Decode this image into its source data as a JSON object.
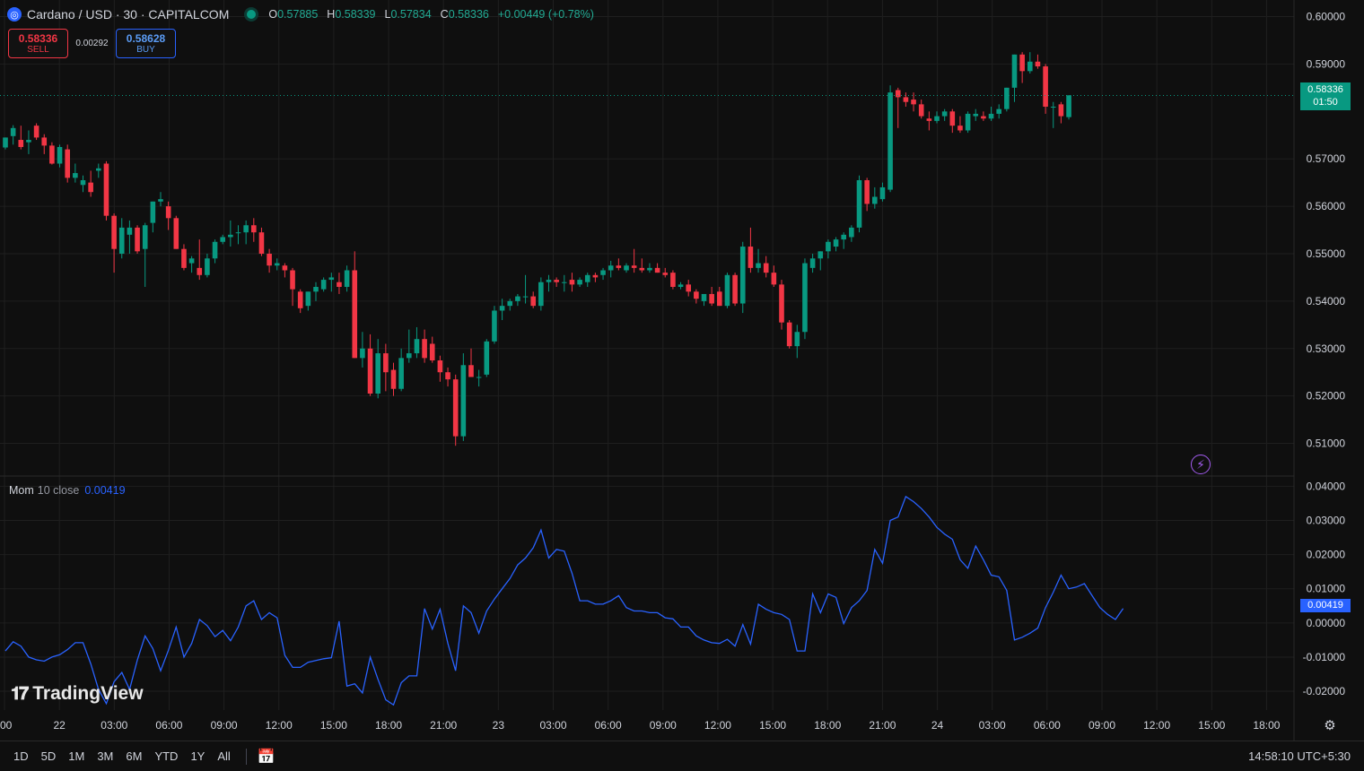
{
  "header": {
    "symbol_icon": "cardano-logo-icon",
    "title": "Cardano / USD · 30 · CAPITALCOM",
    "ohlc": {
      "o_label": "O",
      "o": "0.57885",
      "h_label": "H",
      "h": "0.58339",
      "l_label": "L",
      "l": "0.57834",
      "c_label": "C",
      "c": "0.58336",
      "change": "+0.00449 (+0.78%)"
    }
  },
  "trade": {
    "sell_price": "0.58336",
    "sell_label": "SELL",
    "spread": "0.00292",
    "buy_price": "0.58628",
    "buy_label": "BUY"
  },
  "price_tag": {
    "price": "0.58336",
    "countdown": "01:50"
  },
  "indicator": {
    "name": "Mom",
    "params": "10 close",
    "value": "0.00419"
  },
  "logo": {
    "text": "TradingView"
  },
  "bottom_bar": {
    "ranges": [
      "1D",
      "5D",
      "1M",
      "3M",
      "6M",
      "YTD",
      "1Y",
      "All"
    ],
    "clock": "14:58:10 UTC+5:30"
  },
  "colors": {
    "up": "#089981",
    "down": "#f23645",
    "mom_line": "#2962ff",
    "background": "#0f0f0f",
    "grid": "#1f1f1f"
  },
  "chart_data": [
    {
      "type": "candlestick",
      "title": "Cardano / USD · 30 · CAPITALCOM",
      "y_ticks": [
        "0.60000",
        "0.59000",
        "0.57000",
        "0.56000",
        "0.55000",
        "0.54000",
        "0.53000",
        "0.52000",
        "0.51000"
      ],
      "ylim": [
        0.5033,
        0.6035
      ],
      "x_ticks": [
        ":00",
        "22",
        "03:00",
        "06:00",
        "09:00",
        "12:00",
        "15:00",
        "18:00",
        "21:00",
        "23",
        "03:00",
        "06:00",
        "09:00",
        "12:00",
        "15:00",
        "18:00",
        "21:00",
        "24",
        "03:00",
        "06:00",
        "09:00",
        "12:00",
        "15:00",
        "18:00"
      ],
      "grid": true,
      "last_price_line": 0.58336,
      "candles": [
        [
          0.5724,
          0.5745,
          0.572,
          0.5745
        ],
        [
          0.5748,
          0.5771,
          0.573,
          0.5765
        ],
        [
          0.574,
          0.577,
          0.572,
          0.5725
        ],
        [
          0.5735,
          0.576,
          0.571,
          0.574
        ],
        [
          0.577,
          0.5775,
          0.574,
          0.5745
        ],
        [
          0.5745,
          0.5752,
          0.571,
          0.5728
        ],
        [
          0.5728,
          0.5735,
          0.5688,
          0.569
        ],
        [
          0.569,
          0.573,
          0.5682,
          0.5725
        ],
        [
          0.572,
          0.573,
          0.565,
          0.566
        ],
        [
          0.566,
          0.569,
          0.565,
          0.567
        ],
        [
          0.5645,
          0.5665,
          0.563,
          0.5655
        ],
        [
          0.565,
          0.5675,
          0.562,
          0.563
        ],
        [
          0.5675,
          0.569,
          0.566,
          0.568
        ],
        [
          0.569,
          0.5695,
          0.557,
          0.558
        ],
        [
          0.558,
          0.5585,
          0.546,
          0.551
        ],
        [
          0.55,
          0.5575,
          0.549,
          0.5555
        ],
        [
          0.554,
          0.557,
          0.55,
          0.5555
        ],
        [
          0.5555,
          0.556,
          0.55,
          0.5505
        ],
        [
          0.551,
          0.5565,
          0.543,
          0.556
        ],
        [
          0.5565,
          0.561,
          0.5545,
          0.561
        ],
        [
          0.561,
          0.563,
          0.56,
          0.5615
        ],
        [
          0.56,
          0.561,
          0.555,
          0.5575
        ],
        [
          0.5575,
          0.558,
          0.551,
          0.551
        ],
        [
          0.551,
          0.552,
          0.5465,
          0.547
        ],
        [
          0.548,
          0.5495,
          0.546,
          0.549
        ],
        [
          0.547,
          0.553,
          0.5445,
          0.5455
        ],
        [
          0.5455,
          0.55,
          0.545,
          0.549
        ],
        [
          0.549,
          0.553,
          0.548,
          0.5525
        ],
        [
          0.5525,
          0.554,
          0.552,
          0.5535
        ],
        [
          0.5535,
          0.557,
          0.5515,
          0.554
        ],
        [
          0.5545,
          0.556,
          0.552,
          0.5545
        ],
        [
          0.5545,
          0.557,
          0.552,
          0.556
        ],
        [
          0.556,
          0.5575,
          0.5525,
          0.5545
        ],
        [
          0.5545,
          0.5555,
          0.5495,
          0.55
        ],
        [
          0.55,
          0.551,
          0.546,
          0.5475
        ],
        [
          0.5475,
          0.549,
          0.5465,
          0.548
        ],
        [
          0.5475,
          0.548,
          0.545,
          0.5465
        ],
        [
          0.5465,
          0.547,
          0.539,
          0.5425
        ],
        [
          0.542,
          0.5425,
          0.5375,
          0.5385
        ],
        [
          0.539,
          0.542,
          0.538,
          0.542
        ],
        [
          0.542,
          0.544,
          0.54,
          0.543
        ],
        [
          0.5425,
          0.545,
          0.542,
          0.5445
        ],
        [
          0.5445,
          0.546,
          0.542,
          0.545
        ],
        [
          0.544,
          0.546,
          0.5415,
          0.543
        ],
        [
          0.543,
          0.5475,
          0.542,
          0.5465
        ],
        [
          0.5465,
          0.5505,
          0.528,
          0.528
        ],
        [
          0.528,
          0.5335,
          0.526,
          0.53
        ],
        [
          0.53,
          0.533,
          0.52,
          0.5205
        ],
        [
          0.5205,
          0.532,
          0.5195,
          0.529
        ],
        [
          0.529,
          0.531,
          0.521,
          0.525
        ],
        [
          0.5255,
          0.527,
          0.52,
          0.5215
        ],
        [
          0.5215,
          0.53,
          0.521,
          0.528
        ],
        [
          0.528,
          0.534,
          0.527,
          0.529
        ],
        [
          0.529,
          0.5345,
          0.528,
          0.532
        ],
        [
          0.532,
          0.534,
          0.527,
          0.528
        ],
        [
          0.531,
          0.5325,
          0.527,
          0.5275
        ],
        [
          0.5275,
          0.5285,
          0.523,
          0.525
        ],
        [
          0.525,
          0.526,
          0.522,
          0.5235
        ],
        [
          0.5235,
          0.5245,
          0.5095,
          0.5115
        ],
        [
          0.5115,
          0.529,
          0.5105,
          0.5265
        ],
        [
          0.5265,
          0.53,
          0.524,
          0.524
        ],
        [
          0.524,
          0.5255,
          0.522,
          0.524
        ],
        [
          0.5245,
          0.532,
          0.524,
          0.5315
        ],
        [
          0.5315,
          0.539,
          0.531,
          0.538
        ],
        [
          0.538,
          0.5405,
          0.536,
          0.539
        ],
        [
          0.539,
          0.5405,
          0.538,
          0.54
        ],
        [
          0.54,
          0.5415,
          0.539,
          0.541
        ],
        [
          0.541,
          0.5455,
          0.5395,
          0.541
        ],
        [
          0.541,
          0.542,
          0.5385,
          0.539
        ],
        [
          0.539,
          0.545,
          0.538,
          0.544
        ],
        [
          0.544,
          0.5455,
          0.542,
          0.5445
        ],
        [
          0.5445,
          0.545,
          0.543,
          0.544
        ],
        [
          0.544,
          0.5455,
          0.542,
          0.544
        ],
        [
          0.5445,
          0.546,
          0.542,
          0.5435
        ],
        [
          0.5435,
          0.545,
          0.543,
          0.5445
        ],
        [
          0.544,
          0.546,
          0.543,
          0.5455
        ],
        [
          0.5455,
          0.546,
          0.544,
          0.545
        ],
        [
          0.5455,
          0.547,
          0.5445,
          0.5465
        ],
        [
          0.5465,
          0.5485,
          0.545,
          0.5475
        ],
        [
          0.5475,
          0.549,
          0.5465,
          0.547
        ],
        [
          0.5465,
          0.548,
          0.546,
          0.5475
        ],
        [
          0.5475,
          0.551,
          0.546,
          0.547
        ],
        [
          0.547,
          0.549,
          0.546,
          0.5465
        ],
        [
          0.5465,
          0.548,
          0.546,
          0.547
        ],
        [
          0.547,
          0.548,
          0.546,
          0.546
        ],
        [
          0.546,
          0.547,
          0.545,
          0.5455
        ],
        [
          0.546,
          0.5465,
          0.5425,
          0.543
        ],
        [
          0.543,
          0.544,
          0.5425,
          0.5435
        ],
        [
          0.5435,
          0.5445,
          0.541,
          0.542
        ],
        [
          0.542,
          0.5425,
          0.5395,
          0.5405
        ],
        [
          0.54,
          0.541,
          0.539,
          0.5415
        ],
        [
          0.5415,
          0.543,
          0.539,
          0.5395
        ],
        [
          0.542,
          0.543,
          0.539,
          0.539
        ],
        [
          0.539,
          0.546,
          0.5385,
          0.5455
        ],
        [
          0.5455,
          0.546,
          0.539,
          0.5395
        ],
        [
          0.5395,
          0.5525,
          0.5375,
          0.5515
        ],
        [
          0.5515,
          0.5555,
          0.546,
          0.547
        ],
        [
          0.547,
          0.551,
          0.546,
          0.548
        ],
        [
          0.548,
          0.5495,
          0.545,
          0.546
        ],
        [
          0.546,
          0.5475,
          0.543,
          0.5435
        ],
        [
          0.5435,
          0.5445,
          0.534,
          0.5355
        ],
        [
          0.5355,
          0.536,
          0.53,
          0.5305
        ],
        [
          0.5305,
          0.535,
          0.528,
          0.5335
        ],
        [
          0.5335,
          0.549,
          0.532,
          0.548
        ],
        [
          0.547,
          0.55,
          0.546,
          0.549
        ],
        [
          0.549,
          0.5505,
          0.5465,
          0.5505
        ],
        [
          0.5505,
          0.553,
          0.549,
          0.5525
        ],
        [
          0.5515,
          0.5535,
          0.5505,
          0.553
        ],
        [
          0.553,
          0.5545,
          0.551,
          0.554
        ],
        [
          0.5535,
          0.556,
          0.5525,
          0.5555
        ],
        [
          0.5555,
          0.5665,
          0.5545,
          0.5655
        ],
        [
          0.5655,
          0.566,
          0.559,
          0.5605
        ],
        [
          0.5605,
          0.564,
          0.5595,
          0.562
        ],
        [
          0.5615,
          0.565,
          0.561,
          0.564
        ],
        [
          0.5635,
          0.5855,
          0.563,
          0.584
        ],
        [
          0.5845,
          0.585,
          0.5765,
          0.583
        ],
        [
          0.583,
          0.584,
          0.581,
          0.582
        ],
        [
          0.5825,
          0.584,
          0.58,
          0.5815
        ],
        [
          0.5815,
          0.5825,
          0.5785,
          0.579
        ],
        [
          0.5785,
          0.58,
          0.576,
          0.578
        ],
        [
          0.578,
          0.58,
          0.5775,
          0.579
        ],
        [
          0.579,
          0.5805,
          0.578,
          0.58
        ],
        [
          0.58,
          0.5805,
          0.5755,
          0.577
        ],
        [
          0.577,
          0.579,
          0.5755,
          0.576
        ],
        [
          0.576,
          0.58,
          0.5755,
          0.5795
        ],
        [
          0.579,
          0.5805,
          0.578,
          0.5795
        ],
        [
          0.579,
          0.58,
          0.578,
          0.5785
        ],
        [
          0.5785,
          0.581,
          0.578,
          0.5795
        ],
        [
          0.5795,
          0.5815,
          0.5785,
          0.5805
        ],
        [
          0.5805,
          0.585,
          0.58,
          0.585
        ],
        [
          0.585,
          0.592,
          0.582,
          0.592
        ],
        [
          0.592,
          0.5925,
          0.586,
          0.5885
        ],
        [
          0.5885,
          0.5925,
          0.588,
          0.5905
        ],
        [
          0.5905,
          0.592,
          0.589,
          0.5895
        ],
        [
          0.5895,
          0.59,
          0.5795,
          0.581
        ],
        [
          0.581,
          0.582,
          0.5765,
          0.581
        ],
        [
          0.5815,
          0.582,
          0.5775,
          0.579
        ],
        [
          0.5788,
          0.5834,
          0.5783,
          0.5834
        ]
      ]
    },
    {
      "type": "line",
      "title": "Mom 10 close",
      "series": [
        {
          "name": "Mom",
          "values": [
            -0.0082,
            -0.0055,
            -0.0068,
            -0.01,
            -0.0108,
            -0.0112,
            -0.01,
            -0.0093,
            -0.0078,
            -0.0058,
            -0.0058,
            -0.012,
            -0.0195,
            -0.0236,
            -0.0172,
            -0.0145,
            -0.0195,
            -0.0108,
            -0.0038,
            -0.0075,
            -0.014,
            -0.008,
            -0.0012,
            -0.01,
            -0.006,
            0.001,
            -0.0008,
            -0.004,
            -0.0022,
            -0.0052,
            -0.0012,
            0.005,
            0.0065,
            0.001,
            0.003,
            0.0015,
            -0.0095,
            -0.013,
            -0.013,
            -0.0115,
            -0.011,
            -0.0105,
            -0.0102,
            0.0005,
            -0.0185,
            -0.0178,
            -0.0205,
            -0.01,
            -0.0165,
            -0.0225,
            -0.024,
            -0.0175,
            -0.0155,
            -0.0155,
            0.0042,
            -0.0018,
            0.004,
            -0.006,
            -0.014,
            0.005,
            0.003,
            -0.003,
            0.0035,
            0.007,
            0.01,
            0.013,
            0.017,
            0.019,
            0.022,
            0.0272,
            0.019,
            0.0215,
            0.021,
            0.0145,
            0.0065,
            0.0065,
            0.0055,
            0.0055,
            0.0065,
            0.008,
            0.0045,
            0.0035,
            0.0035,
            0.003,
            0.003,
            0.0015,
            0.0012,
            -0.0012,
            -0.0012,
            -0.0038,
            -0.005,
            -0.0058,
            -0.006,
            -0.0048,
            -0.0068,
            -0.0005,
            -0.0062,
            0.0055,
            0.004,
            0.003,
            0.0025,
            0.001,
            -0.0082,
            -0.0082,
            0.0085,
            0.003,
            0.0085,
            0.0075,
            -0.0002,
            0.0045,
            0.0065,
            0.0095,
            0.0215,
            0.0175,
            0.03,
            0.031,
            0.037,
            0.0355,
            0.0335,
            0.031,
            0.028,
            0.026,
            0.0245,
            0.0185,
            0.016,
            0.0225,
            0.0185,
            0.014,
            0.0135,
            0.0095,
            -0.005,
            -0.0042,
            -0.003,
            -0.0015,
            0.0045,
            0.009,
            0.014,
            0.01,
            0.0105,
            0.0115,
            0.008,
            0.0045,
            0.0025,
            0.001,
            0.0042
          ]
        }
      ],
      "y_ticks": [
        "0.04000",
        "0.03000",
        "0.02000",
        "0.01000",
        "0.00000",
        "-0.01000",
        "-0.02000"
      ],
      "ylim": [
        -0.0255,
        0.043
      ],
      "current_value": 0.00419
    }
  ]
}
